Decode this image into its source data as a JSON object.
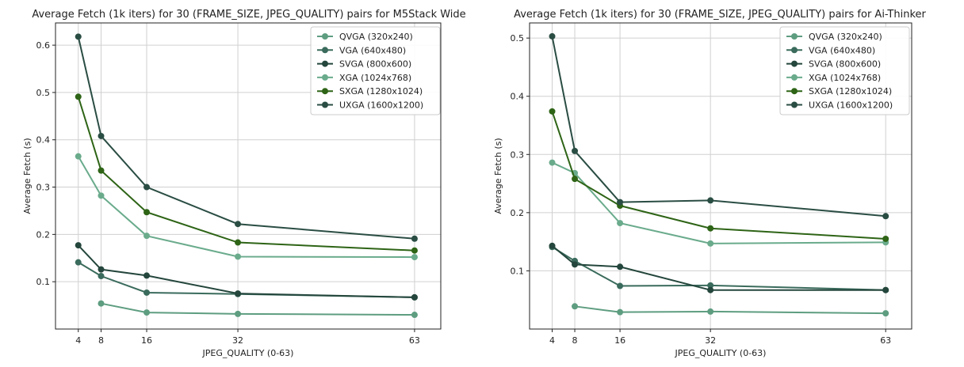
{
  "colors": {
    "QVGA": "#5e9d80",
    "VGA": "#3a6b5c",
    "SVGA": "#24463c",
    "XGA": "#6aab8c",
    "SXGA": "#2e6416",
    "UXGA": "#2a4d43",
    "grid": "#d0d0d0",
    "axis": "#222222"
  },
  "chart_data": [
    {
      "type": "line",
      "title": "Average Fetch (1k iters) for 30 (FRAME_SIZE, JPEG_QUALITY) pairs for M5Stack Wide",
      "xlabel": "JPEG_QUALITY (0-63)",
      "ylabel": "Average Fetch (s)",
      "x_ticks": [
        "4",
        "8",
        "16",
        "32",
        "63"
      ],
      "y_ticks": [
        "0.1",
        "0.2",
        "0.3",
        "0.4",
        "0.5",
        "0.6"
      ],
      "xlim": [
        -0.0,
        67.6
      ],
      "ylim": [
        0.0,
        0.647
      ],
      "grid": true,
      "legend_position": "top-right",
      "series": [
        {
          "name": "QVGA (320x240)",
          "key": "QVGA",
          "x": [
            8,
            16,
            32,
            63
          ],
          "y": [
            0.054,
            0.035,
            0.032,
            0.03
          ]
        },
        {
          "name": "VGA (640x480)",
          "key": "VGA",
          "x": [
            4,
            8,
            16,
            32,
            63
          ],
          "y": [
            0.141,
            0.112,
            0.077,
            0.074,
            0.067
          ]
        },
        {
          "name": "SVGA (800x600)",
          "key": "SVGA",
          "x": [
            4,
            8,
            16,
            32,
            63
          ],
          "y": [
            0.177,
            0.126,
            0.113,
            0.075,
            0.067
          ]
        },
        {
          "name": "XGA (1024x768)",
          "key": "XGA",
          "x": [
            4,
            8,
            16,
            32,
            63
          ],
          "y": [
            0.365,
            0.282,
            0.197,
            0.153,
            0.152
          ]
        },
        {
          "name": "SXGA (1280x1024)",
          "key": "SXGA",
          "x": [
            4,
            8,
            16,
            32,
            63
          ],
          "y": [
            0.491,
            0.335,
            0.247,
            0.183,
            0.166
          ]
        },
        {
          "name": "UXGA (1600x1200)",
          "key": "UXGA",
          "x": [
            4,
            8,
            16,
            32,
            63
          ],
          "y": [
            0.618,
            0.408,
            0.3,
            0.222,
            0.191
          ]
        }
      ]
    },
    {
      "type": "line",
      "title": "Average Fetch (1k iters) for 30 (FRAME_SIZE, JPEG_QUALITY) pairs for Ai-Thinker",
      "xlabel": "JPEG_QUALITY (0-63)",
      "ylabel": "Average Fetch (s)",
      "x_ticks": [
        "4",
        "8",
        "16",
        "32",
        "63"
      ],
      "y_ticks": [
        "0.1",
        "0.2",
        "0.3",
        "0.4",
        "0.5"
      ],
      "xlim": [
        -0.0,
        67.6
      ],
      "ylim": [
        0.0,
        0.526
      ],
      "grid": true,
      "legend_position": "top-right",
      "series": [
        {
          "name": "QVGA (320x240)",
          "key": "QVGA",
          "x": [
            8,
            16,
            32,
            63
          ],
          "y": [
            0.039,
            0.029,
            0.03,
            0.027
          ]
        },
        {
          "name": "VGA (640x480)",
          "key": "VGA",
          "x": [
            4,
            8,
            16,
            32,
            63
          ],
          "y": [
            0.141,
            0.117,
            0.074,
            0.075,
            0.067
          ]
        },
        {
          "name": "SVGA (800x600)",
          "key": "SVGA",
          "x": [
            4,
            8,
            16,
            32,
            63
          ],
          "y": [
            0.143,
            0.111,
            0.107,
            0.067,
            0.067
          ]
        },
        {
          "name": "XGA (1024x768)",
          "key": "XGA",
          "x": [
            4,
            8,
            16,
            32,
            63
          ],
          "y": [
            0.286,
            0.268,
            0.182,
            0.147,
            0.149
          ]
        },
        {
          "name": "SXGA (1280x1024)",
          "key": "SXGA",
          "x": [
            4,
            8,
            16,
            32,
            63
          ],
          "y": [
            0.374,
            0.258,
            0.212,
            0.173,
            0.155
          ]
        },
        {
          "name": "UXGA (1600x1200)",
          "key": "UXGA",
          "x": [
            4,
            8,
            16,
            32,
            63
          ],
          "y": [
            0.503,
            0.306,
            0.218,
            0.221,
            0.194
          ]
        }
      ]
    }
  ]
}
